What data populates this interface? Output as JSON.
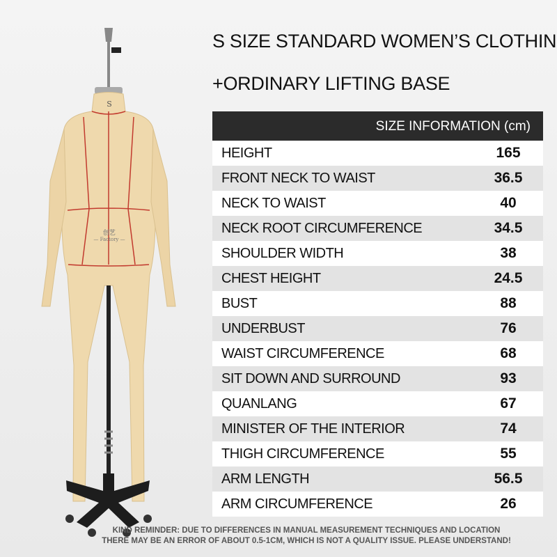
{
  "header": {
    "line1": "S SIZE STANDARD WOMEN’S CLOTHING",
    "line2": "+ORDINARY LIFTING BASE"
  },
  "mannequin": {
    "size_tag": "S",
    "brand": "创艺",
    "brand_sub": "— Factory —"
  },
  "table": {
    "header": "SIZE INFORMATION (cm)",
    "rows": [
      [
        "HEIGHT",
        165
      ],
      [
        "FRONT NECK TO WAIST",
        36.5
      ],
      [
        "NECK TO WAIST",
        40
      ],
      [
        "NECK ROOT CIRCUMFERENCE",
        34.5
      ],
      [
        "SHOULDER WIDTH",
        38
      ],
      [
        "CHEST HEIGHT",
        24.5
      ],
      [
        "BUST",
        88
      ],
      [
        "UNDERBUST",
        76
      ],
      [
        "WAIST CIRCUMFERENCE",
        68
      ],
      [
        "SIT DOWN AND SURROUND",
        93
      ],
      [
        "QUANLANG",
        67
      ],
      [
        "MINISTER OF THE INTERIOR",
        74
      ],
      [
        "THIGH CIRCUMFERENCE",
        55
      ],
      [
        "ARM LENGTH",
        56.5
      ],
      [
        "ARM CIRCUMFERENCE",
        26
      ]
    ]
  },
  "footer": {
    "line1": "KIND REMINDER: DUE TO DIFFERENCES IN MANUAL MEASUREMENT TECHNIQUES AND LOCATION",
    "line2": "THERE MAY BE AN ERROR OF ABOUT 0.5-1CM, WHICH IS NOT A QUALITY ISSUE. PLEASE UNDERSTAND!"
  }
}
